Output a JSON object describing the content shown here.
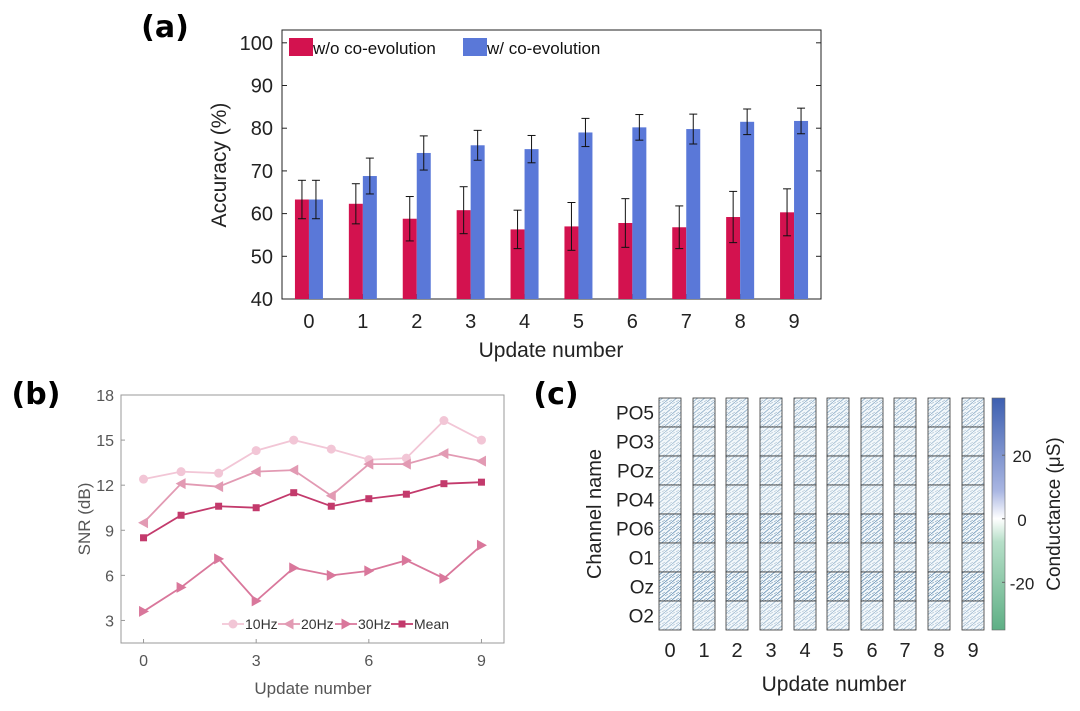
{
  "chart_data": [
    {
      "panel": "(a)",
      "type": "bar",
      "xlabel": "Update number",
      "ylabel": "Accuracy (%)",
      "ylim": [
        40,
        103
      ],
      "yticks": [
        40,
        50,
        60,
        70,
        80,
        90,
        100
      ],
      "categories": [
        "0",
        "1",
        "2",
        "3",
        "4",
        "5",
        "6",
        "7",
        "8",
        "9"
      ],
      "legend_placement": "top-left",
      "series": [
        {
          "name": "w/o co-evolution",
          "color": "#d3124f",
          "values": [
            63.3,
            62.3,
            58.8,
            60.8,
            56.3,
            57.0,
            57.8,
            56.8,
            59.2,
            60.3
          ],
          "errors": [
            4.5,
            4.7,
            5.2,
            5.5,
            4.5,
            5.6,
            5.7,
            5.0,
            6.0,
            5.5
          ]
        },
        {
          "name": "w/  co-evolution",
          "color": "#5a78d8",
          "values": [
            63.3,
            68.8,
            74.2,
            76.0,
            75.1,
            79.0,
            80.2,
            79.8,
            81.5,
            81.7
          ],
          "errors": [
            4.5,
            4.2,
            4.0,
            3.5,
            3.2,
            3.3,
            3.0,
            3.5,
            3.0,
            3.0
          ]
        }
      ]
    },
    {
      "panel": "(b)",
      "type": "line",
      "xlabel": "Update number",
      "ylabel": "SNR (dB)",
      "x": [
        0,
        1,
        2,
        3,
        4,
        5,
        6,
        7,
        8,
        9
      ],
      "xticks": [
        0,
        3,
        6,
        9
      ],
      "yticks": [
        3,
        6,
        9,
        12,
        15,
        18
      ],
      "xlim": [
        -0.6,
        9.6
      ],
      "ylim": [
        1.5,
        18
      ],
      "legend_placement": "bottom-right",
      "series": [
        {
          "name": "10Hz",
          "marker": "circle",
          "color": "#f2c6d6",
          "values": [
            12.4,
            12.9,
            12.8,
            14.3,
            15.0,
            14.4,
            13.7,
            13.8,
            16.3,
            15.0
          ]
        },
        {
          "name": "20Hz",
          "marker": "triangle-left",
          "color": "#e29ab3",
          "values": [
            9.5,
            12.1,
            11.9,
            12.9,
            13.0,
            11.3,
            13.4,
            13.4,
            14.1,
            13.6
          ]
        },
        {
          "name": "30Hz",
          "marker": "triangle-right",
          "color": "#d9779b",
          "values": [
            3.6,
            5.2,
            7.1,
            4.3,
            6.5,
            6.0,
            6.3,
            7.0,
            5.8,
            8.0
          ]
        },
        {
          "name": "Mean",
          "marker": "square",
          "color": "#c33a6c",
          "values": [
            8.5,
            10.0,
            10.6,
            10.5,
            11.5,
            10.6,
            11.1,
            11.4,
            12.1,
            12.2
          ]
        }
      ]
    },
    {
      "panel": "(c)",
      "type": "heatmap",
      "xlabel": "Update number",
      "ylabel": "Channel name",
      "categories": [
        "0",
        "1",
        "2",
        "3",
        "4",
        "5",
        "6",
        "7",
        "8",
        "9"
      ],
      "channels": [
        "PO5",
        "PO3",
        "POz",
        "PO4",
        "PO6",
        "O1",
        "Oz",
        "O2"
      ],
      "channel_intensity": [
        0.55,
        0.35,
        0.45,
        0.35,
        0.85,
        0.45,
        0.95,
        0.4
      ],
      "colorbar": {
        "label": "Conductance (μS)",
        "ticks": [
          20,
          0,
          -20
        ],
        "range": [
          -35,
          38
        ]
      }
    }
  ]
}
